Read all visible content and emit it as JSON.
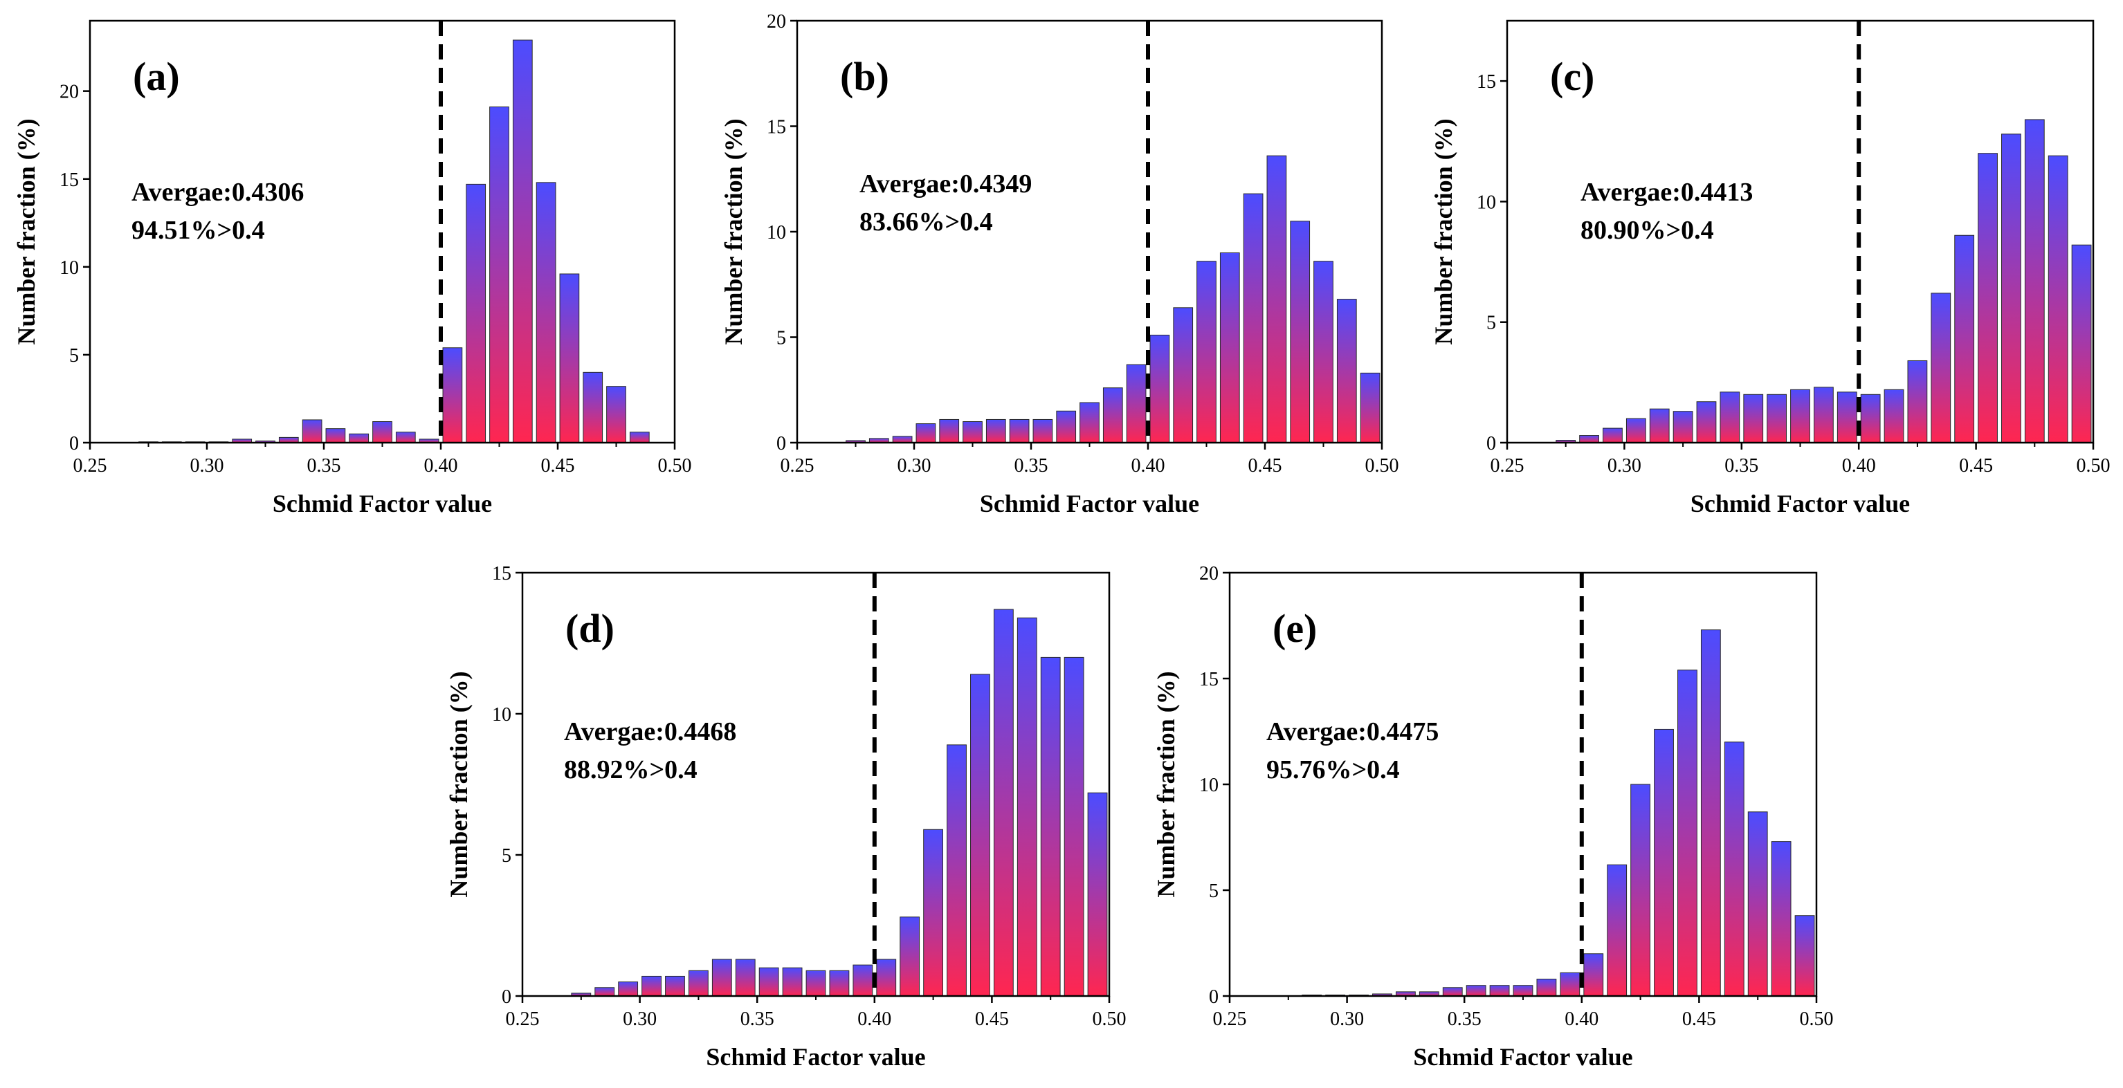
{
  "colors": {
    "bar_top": "#4c4cff",
    "bar_bottom": "#ff2650",
    "bar_stroke": "#2a2a2a",
    "threshold_line": "#000000"
  },
  "chart_data": [
    {
      "type": "bar",
      "panel_label": "(a)",
      "xlabel": "Schmid Factor value",
      "ylabel": "Number fraction (%)",
      "xlim": [
        0.25,
        0.5
      ],
      "ylim": [
        0,
        24
      ],
      "xticks": [
        "0.25",
        "0.30",
        "0.35",
        "0.40",
        "0.45",
        "0.50"
      ],
      "yticks": [
        "0",
        "5",
        "10",
        "15",
        "20"
      ],
      "threshold": 0.4,
      "bin_width": 0.01,
      "bins": [
        0.275,
        0.285,
        0.295,
        0.305,
        0.315,
        0.325,
        0.335,
        0.345,
        0.355,
        0.365,
        0.375,
        0.385,
        0.395,
        0.405,
        0.415,
        0.425,
        0.435,
        0.445,
        0.455,
        0.465,
        0.475,
        0.485
      ],
      "values": [
        0.05,
        0.05,
        0.05,
        0.05,
        0.2,
        0.1,
        0.3,
        1.3,
        0.8,
        0.5,
        1.2,
        0.6,
        0.2,
        5.4,
        14.7,
        19.1,
        22.9,
        14.8,
        9.6,
        4.0,
        3.2,
        0.6
      ],
      "annotation_average": "Avergae:0.4306",
      "annotation_percent": "94.51%>0.4"
    },
    {
      "type": "bar",
      "panel_label": "(b)",
      "xlabel": "Schmid Factor value",
      "ylabel": "Number fraction (%)",
      "xlim": [
        0.25,
        0.5
      ],
      "ylim": [
        0,
        20
      ],
      "xticks": [
        "0.25",
        "0.30",
        "0.35",
        "0.40",
        "0.45",
        "0.50"
      ],
      "yticks": [
        "0",
        "5",
        "10",
        "15",
        "20"
      ],
      "threshold": 0.4,
      "bin_width": 0.01,
      "bins": [
        0.275,
        0.285,
        0.295,
        0.305,
        0.315,
        0.325,
        0.335,
        0.345,
        0.355,
        0.365,
        0.375,
        0.385,
        0.395,
        0.405,
        0.415,
        0.425,
        0.435,
        0.445,
        0.455,
        0.465,
        0.475,
        0.485,
        0.495
      ],
      "values": [
        0.1,
        0.2,
        0.3,
        0.9,
        1.1,
        1.0,
        1.1,
        1.1,
        1.1,
        1.5,
        1.9,
        2.6,
        3.7,
        5.1,
        6.4,
        8.6,
        9.0,
        11.8,
        13.6,
        10.5,
        8.6,
        6.8,
        3.3
      ],
      "annotation_average": "Avergae:0.4349",
      "annotation_percent": "83.66%>0.4"
    },
    {
      "type": "bar",
      "panel_label": "(c)",
      "xlabel": "Schmid Factor value",
      "ylabel": "Number fraction (%)",
      "xlim": [
        0.25,
        0.5
      ],
      "ylim": [
        0,
        17.5
      ],
      "xticks": [
        "0.25",
        "0.30",
        "0.35",
        "0.40",
        "0.45",
        "0.50"
      ],
      "yticks": [
        "0",
        "5",
        "10",
        "15"
      ],
      "threshold": 0.4,
      "bin_width": 0.01,
      "bins": [
        0.275,
        0.285,
        0.295,
        0.305,
        0.315,
        0.325,
        0.335,
        0.345,
        0.355,
        0.365,
        0.375,
        0.385,
        0.395,
        0.405,
        0.415,
        0.425,
        0.435,
        0.445,
        0.455,
        0.465,
        0.475,
        0.485,
        0.495
      ],
      "values": [
        0.1,
        0.3,
        0.6,
        1.0,
        1.4,
        1.3,
        1.7,
        2.1,
        2.0,
        2.0,
        2.2,
        2.3,
        2.1,
        2.0,
        2.2,
        3.4,
        6.2,
        8.6,
        12.0,
        12.8,
        13.4,
        11.9,
        8.2
      ],
      "annotation_average": "Avergae:0.4413",
      "annotation_percent": "80.90%>0.4"
    },
    {
      "type": "bar",
      "panel_label": "(d)",
      "xlabel": "Schmid Factor value",
      "ylabel": "Number fraction (%)",
      "xlim": [
        0.25,
        0.5
      ],
      "ylim": [
        0,
        15
      ],
      "xticks": [
        "0.25",
        "0.30",
        "0.35",
        "0.40",
        "0.45",
        "0.50"
      ],
      "yticks": [
        "0",
        "5",
        "10",
        "15"
      ],
      "threshold": 0.4,
      "bin_width": 0.01,
      "bins": [
        0.275,
        0.285,
        0.295,
        0.305,
        0.315,
        0.325,
        0.335,
        0.345,
        0.355,
        0.365,
        0.375,
        0.385,
        0.395,
        0.405,
        0.415,
        0.425,
        0.435,
        0.445,
        0.455,
        0.465,
        0.475,
        0.485,
        0.495
      ],
      "values": [
        0.1,
        0.3,
        0.5,
        0.7,
        0.7,
        0.9,
        1.3,
        1.3,
        1.0,
        1.0,
        0.9,
        0.9,
        1.1,
        1.3,
        2.8,
        5.9,
        8.9,
        11.4,
        13.7,
        13.4,
        12.0,
        12.0,
        7.2
      ],
      "annotation_average": "Avergae:0.4468",
      "annotation_percent": " 88.92%>0.4"
    },
    {
      "type": "bar",
      "panel_label": "(e)",
      "xlabel": "Schmid Factor value",
      "ylabel": "Number fraction (%)",
      "xlim": [
        0.25,
        0.5
      ],
      "ylim": [
        0,
        20
      ],
      "xticks": [
        "0.25",
        "0.30",
        "0.35",
        "0.40",
        "0.45",
        "0.50"
      ],
      "yticks": [
        "0",
        "5",
        "10",
        "15",
        "20"
      ],
      "threshold": 0.4,
      "bin_width": 0.01,
      "bins": [
        0.285,
        0.295,
        0.305,
        0.315,
        0.325,
        0.335,
        0.345,
        0.355,
        0.365,
        0.375,
        0.385,
        0.395,
        0.405,
        0.415,
        0.425,
        0.435,
        0.445,
        0.455,
        0.465,
        0.475,
        0.485,
        0.495
      ],
      "values": [
        0.05,
        0.05,
        0.05,
        0.1,
        0.2,
        0.2,
        0.4,
        0.5,
        0.5,
        0.5,
        0.8,
        1.1,
        2.0,
        6.2,
        10.0,
        12.6,
        15.4,
        17.3,
        12.0,
        8.7,
        7.3,
        3.8
      ],
      "annotation_average": "Avergae:0.4475",
      "annotation_percent": "95.76%>0.4"
    }
  ]
}
